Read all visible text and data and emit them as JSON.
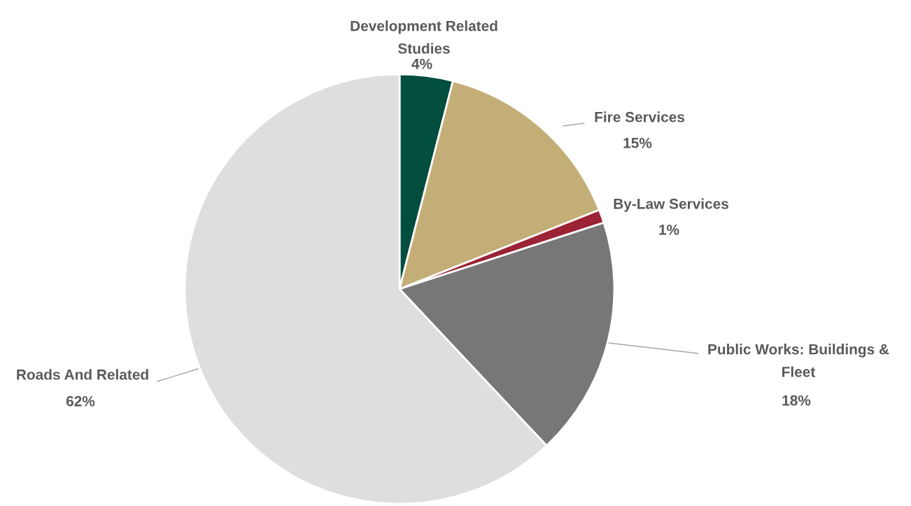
{
  "chart_data": {
    "type": "pie",
    "categories": [
      "Development Related Studies",
      "Fire Services",
      "By-Law Services",
      "Public Works: Buildings & Fleet",
      "Roads And Related"
    ],
    "values": [
      4,
      15,
      1,
      18,
      62
    ],
    "colors": [
      "#014d3e",
      "#c4ae78",
      "#9b2335",
      "#777777",
      "#dedede"
    ],
    "value_labels": [
      "4%",
      "15%",
      "1%",
      "18%",
      "62%"
    ],
    "legend": false
  }
}
